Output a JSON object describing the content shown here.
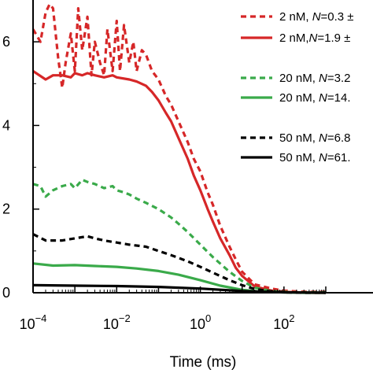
{
  "chart_data": {
    "type": "line",
    "xscale": "log",
    "xlim": [
      0.0001,
      1000
    ],
    "ylim": [
      0,
      0.7
    ],
    "xlabel": "Time (ms)",
    "ylabel": "",
    "x_ticks": [
      {
        "value": 0.0001,
        "base": "10",
        "exp": "−4"
      },
      {
        "value": 0.01,
        "base": "10",
        "exp": "−2"
      },
      {
        "value": 1,
        "base": "10",
        "exp": "0"
      },
      {
        "value": 100,
        "base": "10",
        "exp": "2"
      }
    ],
    "y_ticks": [
      {
        "value": 0.0,
        "label": "0"
      },
      {
        "value": 0.2,
        "label": "2"
      },
      {
        "value": 0.4,
        "label": "4"
      },
      {
        "value": 0.6,
        "label": "6"
      }
    ],
    "legend_placement": "top-right",
    "grid": false,
    "series": [
      {
        "name": "2 nM, N=0.3 ±",
        "legend_prefix": "2 nM, ",
        "legend_suffix": "=0.3 ±",
        "color": "#d62728",
        "dash": "dashed",
        "x": [
          0.0001,
          0.00015,
          0.0002,
          0.00025,
          0.0003,
          0.0004,
          0.0005,
          0.0006,
          0.0008,
          0.001,
          0.0012,
          0.0015,
          0.002,
          0.0025,
          0.003,
          0.004,
          0.005,
          0.006,
          0.008,
          0.01,
          0.012,
          0.015,
          0.02,
          0.025,
          0.03,
          0.04,
          0.05,
          0.07,
          0.1,
          0.15,
          0.2,
          0.3,
          0.5,
          0.7,
          1,
          1.5,
          2,
          3,
          5,
          7,
          10,
          20,
          50,
          100,
          200,
          500,
          1000
        ],
        "y": [
          0.63,
          0.6,
          0.67,
          0.69,
          0.68,
          0.56,
          0.49,
          0.55,
          0.62,
          0.53,
          0.68,
          0.58,
          0.66,
          0.52,
          0.6,
          0.55,
          0.52,
          0.63,
          0.53,
          0.65,
          0.53,
          0.64,
          0.55,
          0.6,
          0.53,
          0.58,
          0.57,
          0.53,
          0.51,
          0.47,
          0.45,
          0.41,
          0.36,
          0.32,
          0.29,
          0.24,
          0.21,
          0.16,
          0.11,
          0.08,
          0.05,
          0.02,
          0.01,
          0.005,
          0.003,
          0.002,
          0.002
        ]
      },
      {
        "name": "2 nM,N=1.9 ±",
        "legend_prefix": "2 nM,",
        "legend_suffix": "=1.9 ±",
        "color": "#d62728",
        "dash": "solid",
        "x": [
          0.0001,
          0.0002,
          0.0003,
          0.0005,
          0.0008,
          0.001,
          0.0015,
          0.002,
          0.003,
          0.005,
          0.008,
          0.01,
          0.02,
          0.03,
          0.05,
          0.07,
          0.1,
          0.15,
          0.2,
          0.3,
          0.5,
          0.7,
          1,
          1.5,
          2,
          3,
          5,
          7,
          10,
          20,
          50,
          100,
          200,
          500,
          1000
        ],
        "y": [
          0.53,
          0.51,
          0.52,
          0.52,
          0.515,
          0.525,
          0.52,
          0.525,
          0.52,
          0.515,
          0.52,
          0.515,
          0.51,
          0.505,
          0.495,
          0.48,
          0.46,
          0.43,
          0.41,
          0.37,
          0.32,
          0.28,
          0.245,
          0.2,
          0.17,
          0.13,
          0.09,
          0.06,
          0.04,
          0.015,
          0.005,
          0.002,
          0.001,
          0.0,
          0.0
        ]
      },
      {
        "name": "20 nM, N=3.2",
        "legend_prefix": "20 nM, ",
        "legend_suffix": "=3.2",
        "color": "#3aaa4a",
        "dash": "dashed",
        "x": [
          0.0001,
          0.00015,
          0.0002,
          0.0003,
          0.0005,
          0.0008,
          0.001,
          0.0015,
          0.002,
          0.003,
          0.005,
          0.008,
          0.01,
          0.015,
          0.02,
          0.03,
          0.05,
          0.1,
          0.2,
          0.3,
          0.5,
          1,
          2,
          5,
          10,
          20,
          50,
          100,
          200,
          500,
          1000
        ],
        "y": [
          0.26,
          0.255,
          0.23,
          0.245,
          0.255,
          0.26,
          0.25,
          0.27,
          0.265,
          0.26,
          0.25,
          0.255,
          0.245,
          0.24,
          0.235,
          0.225,
          0.215,
          0.2,
          0.18,
          0.165,
          0.145,
          0.115,
          0.085,
          0.05,
          0.028,
          0.012,
          0.004,
          0.002,
          0.001,
          0.001,
          0.001
        ]
      },
      {
        "name": "20 nM, N=14.",
        "legend_prefix": "20 nM, ",
        "legend_suffix": "=14.",
        "color": "#3aaa4a",
        "dash": "solid",
        "x": [
          0.0001,
          0.0003,
          0.001,
          0.003,
          0.01,
          0.03,
          0.1,
          0.3,
          1,
          3,
          10,
          30,
          100,
          300,
          1000
        ],
        "y": [
          0.07,
          0.065,
          0.066,
          0.064,
          0.062,
          0.058,
          0.052,
          0.043,
          0.03,
          0.017,
          0.007,
          0.002,
          0.001,
          0.0,
          0.0
        ]
      },
      {
        "name": "50 nM, N=6.8",
        "legend_prefix": "50 nM, ",
        "legend_suffix": "=6.8",
        "color": "#000000",
        "dash": "dashed",
        "x": [
          0.0001,
          0.0002,
          0.0005,
          0.001,
          0.002,
          0.003,
          0.005,
          0.01,
          0.02,
          0.05,
          0.1,
          0.2,
          0.5,
          1,
          2,
          5,
          10,
          20,
          50,
          100,
          300,
          1000
        ],
        "y": [
          0.14,
          0.125,
          0.125,
          0.13,
          0.135,
          0.13,
          0.125,
          0.12,
          0.115,
          0.11,
          0.1,
          0.09,
          0.075,
          0.062,
          0.048,
          0.03,
          0.018,
          0.009,
          0.003,
          0.001,
          0.0,
          0.0
        ]
      },
      {
        "name": "50 nM, N=61.",
        "legend_prefix": "50 nM, ",
        "legend_suffix": "=61.",
        "color": "#000000",
        "dash": "solid",
        "x": [
          0.0001,
          0.001,
          0.01,
          0.1,
          1,
          10,
          100,
          1000
        ],
        "y": [
          0.018,
          0.017,
          0.016,
          0.014,
          0.01,
          0.004,
          0.001,
          0.0
        ]
      }
    ]
  }
}
